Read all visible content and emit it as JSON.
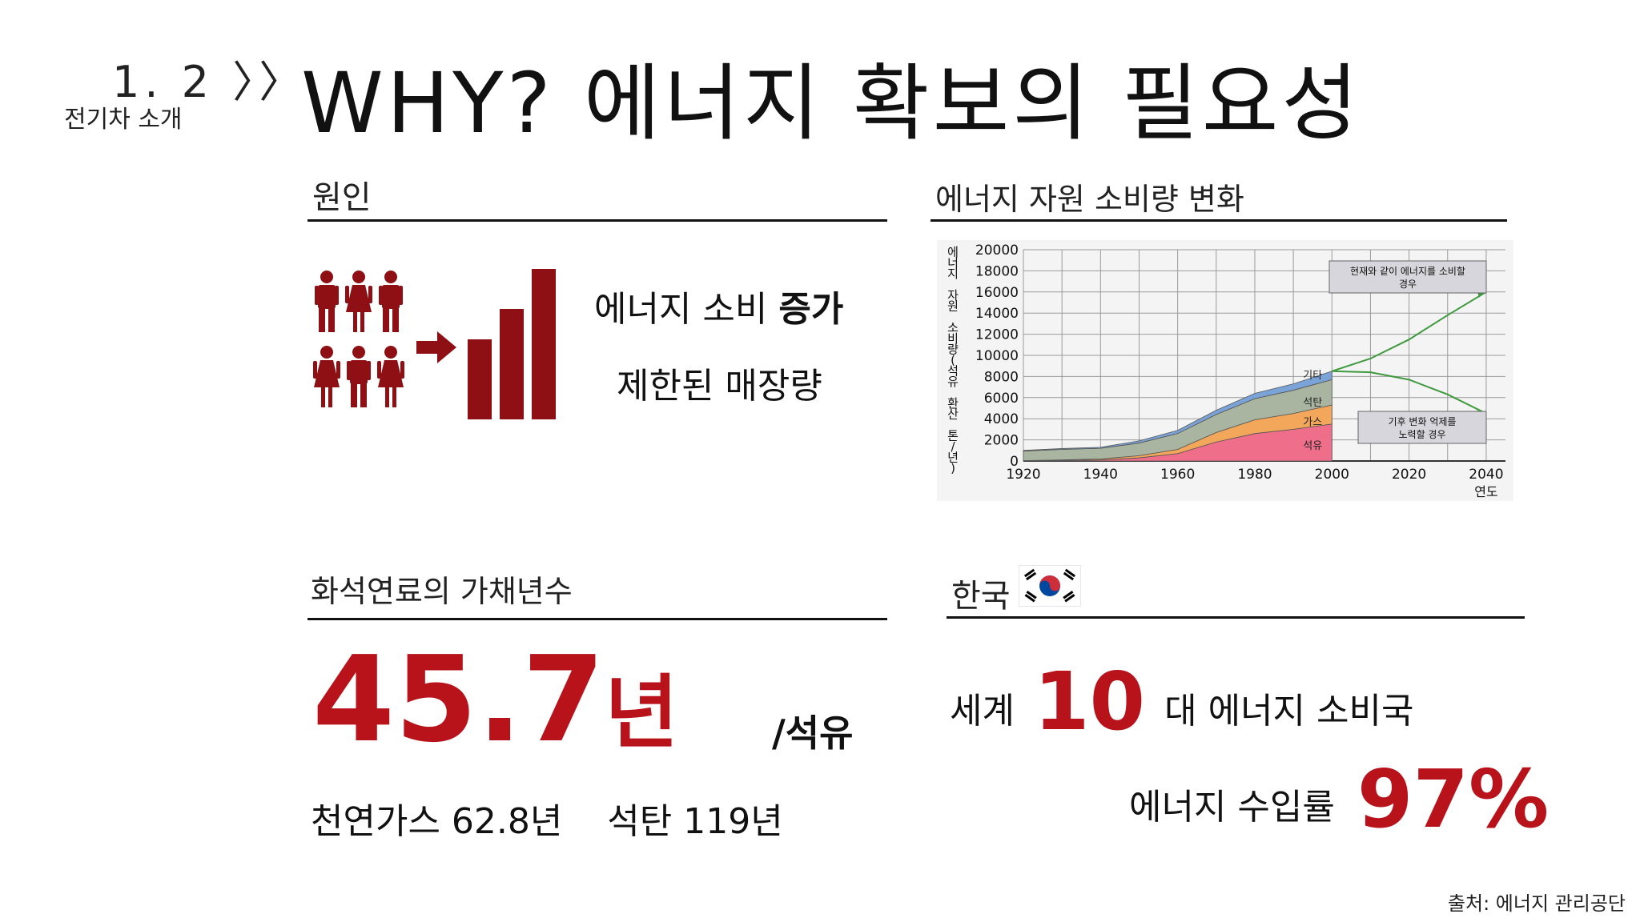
{
  "header": {
    "section_no": "1. 2 〉〉",
    "section_name": "전기차 소개",
    "title": "WHY? 에너지 확보의 필요성"
  },
  "cause": {
    "heading": "원인",
    "line1_prefix": "에너지 소비 ",
    "line1_bold": "증가",
    "line2": "제한된 매장량"
  },
  "chart_section": {
    "heading": "에너지 자원 소비량 변화"
  },
  "fossil": {
    "heading": "화석연료의 가채년수",
    "oil_years": "45.7",
    "oil_unit": "년",
    "oil_label": "/석유",
    "others": "천연가스 62.8년    석탄 119년"
  },
  "korea": {
    "heading": "한국",
    "world_prefix": "세계 ",
    "world_rank": "10",
    "world_suffix": " 대 에너지 소비국",
    "import_label": "에너지 수입률 ",
    "import_rate": "97%"
  },
  "source": "출처: 에너지 관리공단",
  "colors": {
    "accent_red": "#b8121b",
    "icon_red": "#8f1014"
  },
  "chart_data": {
    "type": "area",
    "ylabel": "에너지 자원 소비량(석유 환산 톤/년)",
    "xlabel": "연도",
    "x_ticks": [
      "1920",
      "1940",
      "1960",
      "1980",
      "2000",
      "2020",
      "2040"
    ],
    "y_ticks": [
      "0",
      "2000",
      "4000",
      "6000",
      "8000",
      "10000",
      "12000",
      "14000",
      "16000",
      "18000",
      "20000"
    ],
    "xlim": [
      1920,
      2045
    ],
    "ylim": [
      0,
      20000
    ],
    "x": [
      1920,
      1930,
      1940,
      1950,
      1960,
      1970,
      1980,
      1990,
      2000
    ],
    "series": [
      {
        "name": "석유",
        "color": "#ef6f8a",
        "values": [
          20,
          50,
          100,
          300,
          700,
          1800,
          2600,
          3000,
          3500
        ]
      },
      {
        "name": "가스",
        "color": "#f3a75a",
        "values": [
          20,
          50,
          100,
          200,
          400,
          900,
          1300,
          1500,
          1800
        ]
      },
      {
        "name": "석탄",
        "color": "#a9b5a0",
        "values": [
          900,
          1000,
          1000,
          1200,
          1500,
          1700,
          2000,
          2200,
          2400
        ]
      },
      {
        "name": "기타",
        "color": "#7aa3d8",
        "values": [
          60,
          80,
          100,
          200,
          300,
          400,
          500,
          600,
          800
        ]
      }
    ],
    "projections": [
      {
        "label": "현재와 같이 에너지를 소비할 경우",
        "color": "#3f9a3f",
        "x": [
          2000,
          2010,
          2020,
          2030,
          2040
        ],
        "values": [
          8500,
          9700,
          11500,
          13800,
          16000
        ]
      },
      {
        "label": "기후 변화 억제를 노력할 경우",
        "color": "#3f9a3f",
        "x": [
          2000,
          2010,
          2020,
          2030,
          2040
        ],
        "values": [
          8500,
          8400,
          7700,
          6300,
          4500
        ]
      }
    ]
  }
}
